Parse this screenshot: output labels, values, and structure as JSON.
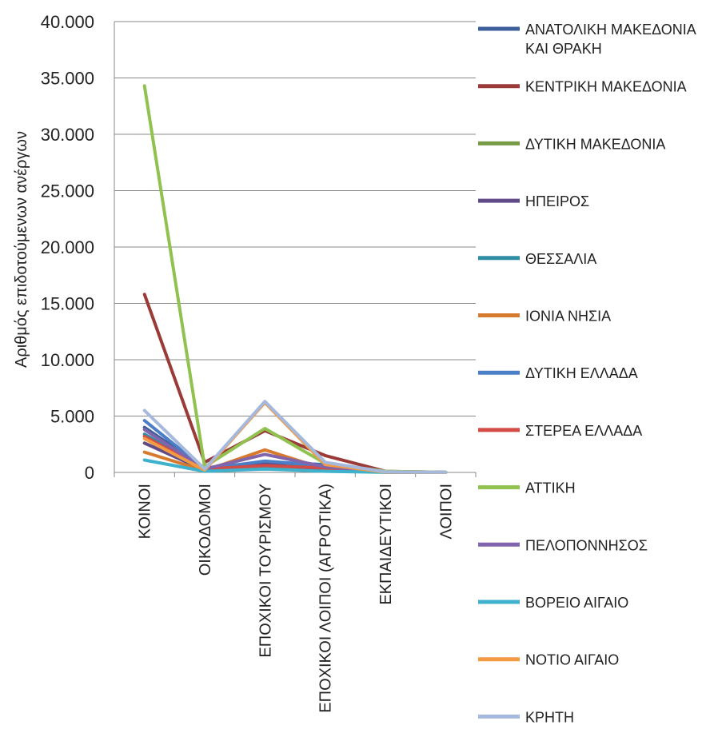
{
  "chart_data": {
    "type": "line",
    "title": "",
    "xlabel": "",
    "ylabel": "Αριθμός επιδοτούμενων ανέργων",
    "ylim": [
      0,
      40000
    ],
    "y_ticks": [
      0,
      5000,
      10000,
      15000,
      20000,
      25000,
      30000,
      35000,
      40000
    ],
    "y_tick_labels": [
      "0",
      "5.000",
      "10.000",
      "15.000",
      "20.000",
      "25.000",
      "30.000",
      "35.000",
      "40.000"
    ],
    "grid": true,
    "legend_position": "right",
    "categories": [
      "ΚΟΙΝΟΙ",
      "ΟΙΚΟΔΟΜΟΙ",
      "ΕΠΟΧΙΚΟΙ ΤΟΥΡΙΣΜΟΥ",
      "ΕΠΟΧΙΚΟΙ ΛΟΙΠΟΙ (ΑΓΡΟΤΙΚΑ)",
      "ΕΚΠΑΙΔΕΥΤΙΚΟΙ",
      "ΛΟΙΠΟΙ"
    ],
    "series": [
      {
        "name": "ΑΝΑΤΟΛΙΚΗ ΜΑΚΕΔΟΝΙΑ ΚΑΙ ΘΡΑΚΗ",
        "color": "#3c5f9c",
        "values": [
          4000,
          400,
          900,
          700,
          50,
          5
        ]
      },
      {
        "name": "ΚΕΝΤΡΙΚΗ ΜΑΚΕΔΟΝΙΑ",
        "color": "#9b3b38",
        "values": [
          15800,
          900,
          3700,
          1500,
          100,
          10
        ]
      },
      {
        "name": "ΔΥΤΙΚΗ ΜΑΚΕΔΟΝΙΑ",
        "color": "#779a45",
        "values": [
          2600,
          300,
          300,
          300,
          30,
          3
        ]
      },
      {
        "name": "ΗΠΕΙΡΟΣ",
        "color": "#614a88",
        "values": [
          2600,
          200,
          700,
          300,
          30,
          3
        ]
      },
      {
        "name": "ΘΕΣΣΑΛΙΑ",
        "color": "#318ea5",
        "values": [
          3400,
          300,
          400,
          700,
          50,
          5
        ]
      },
      {
        "name": "ΙΟΝΙΑ ΝΗΣΙΑ",
        "color": "#d87a2d",
        "values": [
          1800,
          150,
          2000,
          300,
          20,
          2
        ]
      },
      {
        "name": "ΔΥΤΙΚΗ ΕΛΛΑΔΑ",
        "color": "#4a7ec7",
        "values": [
          4600,
          300,
          1000,
          600,
          50,
          5
        ]
      },
      {
        "name": "ΣΤΕΡΕΑ ΕΛΛΑΔΑ",
        "color": "#d34b46",
        "values": [
          3200,
          300,
          600,
          400,
          30,
          3
        ]
      },
      {
        "name": "ΑΤΤΙΚΗ",
        "color": "#91c250",
        "values": [
          34300,
          500,
          3900,
          800,
          100,
          10
        ]
      },
      {
        "name": "ΠΕΛΟΠΟΝΝΗΣΟΣ",
        "color": "#8165ac",
        "values": [
          3800,
          300,
          1600,
          500,
          30,
          3
        ]
      },
      {
        "name": "ΒΟΡΕΙΟ ΑΙΓΑΙΟ",
        "color": "#3eb2cd",
        "values": [
          1100,
          100,
          300,
          100,
          10,
          1
        ]
      },
      {
        "name": "ΝΟΤΙΟ ΑΙΓΑΙΟ",
        "color": "#f39a45",
        "values": [
          3000,
          200,
          6200,
          700,
          30,
          3
        ]
      },
      {
        "name": "ΚΡΗΤΗ",
        "color": "#a5b9dc",
        "values": [
          5500,
          300,
          6300,
          900,
          50,
          5
        ]
      }
    ]
  }
}
